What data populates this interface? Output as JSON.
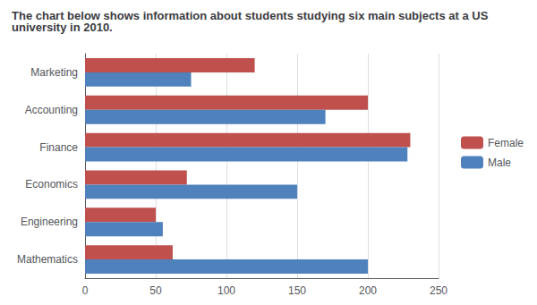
{
  "chart_data": {
    "type": "bar",
    "orientation": "horizontal",
    "title": "The chart below shows information about students studying six main subjects at a US university in 2010.",
    "categories": [
      "Marketing",
      "Accounting",
      "Finance",
      "Economics",
      "Engineering",
      "Mathematics"
    ],
    "series": [
      {
        "name": "Female",
        "color": "#c0504d",
        "values": [
          120,
          200,
          230,
          72,
          50,
          62
        ]
      },
      {
        "name": "Male",
        "color": "#4f81bd",
        "values": [
          75,
          170,
          228,
          150,
          55,
          200
        ]
      }
    ],
    "xlim": [
      0,
      250
    ],
    "xticks": [
      0,
      50,
      100,
      150,
      200,
      250
    ],
    "grid": true,
    "legend": "right"
  }
}
